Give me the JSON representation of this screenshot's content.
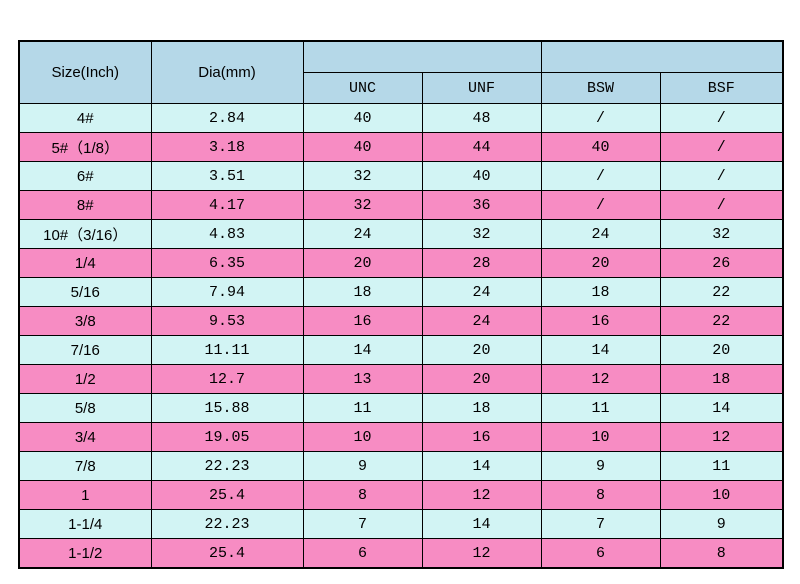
{
  "table": {
    "headers": {
      "size": "Size(Inch)",
      "dia": "Dia(mm)",
      "group_unc_unf": "",
      "group_bsw_bsf": "",
      "unc": "UNC",
      "unf": "UNF",
      "bsw": "BSW",
      "bsf": "BSF"
    },
    "colors": {
      "page_bg": "#ffffff",
      "header_bg": "#b5d8e8",
      "row_cyan": "#d2f4f4",
      "row_pink": "#f78cc3",
      "border": "#000000"
    }
  },
  "chart_data": {
    "type": "table",
    "title": "",
    "columns": [
      "Size(Inch)",
      "Dia(mm)",
      "UNC",
      "UNF",
      "BSW",
      "BSF"
    ],
    "column_groups": [
      {
        "label": "",
        "columns": [
          "Size(Inch)"
        ]
      },
      {
        "label": "",
        "columns": [
          "Dia(mm)"
        ]
      },
      {
        "label": "",
        "columns": [
          "UNC",
          "UNF"
        ]
      },
      {
        "label": "",
        "columns": [
          "BSW",
          "BSF"
        ]
      }
    ],
    "rows": [
      [
        "4#",
        "2.84",
        "40",
        "48",
        "/",
        "/"
      ],
      [
        "5#（1/8）",
        "3.18",
        "40",
        "44",
        "40",
        "/"
      ],
      [
        "6#",
        "3.51",
        "32",
        "40",
        "/",
        "/"
      ],
      [
        "8#",
        "4.17",
        "32",
        "36",
        "/",
        "/"
      ],
      [
        "10#（3/16）",
        "4.83",
        "24",
        "32",
        "24",
        "32"
      ],
      [
        "1/4",
        "6.35",
        "20",
        "28",
        "20",
        "26"
      ],
      [
        "5/16",
        "7.94",
        "18",
        "24",
        "18",
        "22"
      ],
      [
        "3/8",
        "9.53",
        "16",
        "24",
        "16",
        "22"
      ],
      [
        "7/16",
        "11.11",
        "14",
        "20",
        "14",
        "20"
      ],
      [
        "1/2",
        "12.7",
        "13",
        "20",
        "12",
        "18"
      ],
      [
        "5/8",
        "15.88",
        "11",
        "18",
        "11",
        "14"
      ],
      [
        "3/4",
        "19.05",
        "10",
        "16",
        "10",
        "12"
      ],
      [
        "7/8",
        "22.23",
        "9",
        "14",
        "9",
        "11"
      ],
      [
        "1",
        "25.4",
        "8",
        "12",
        "8",
        "10"
      ],
      [
        "1-1/4",
        "22.23",
        "7",
        "14",
        "7",
        "9"
      ],
      [
        "1-1/2",
        "25.4",
        "6",
        "12",
        "6",
        "8"
      ]
    ],
    "row_stripe_pattern": [
      "cyan",
      "pink"
    ]
  }
}
